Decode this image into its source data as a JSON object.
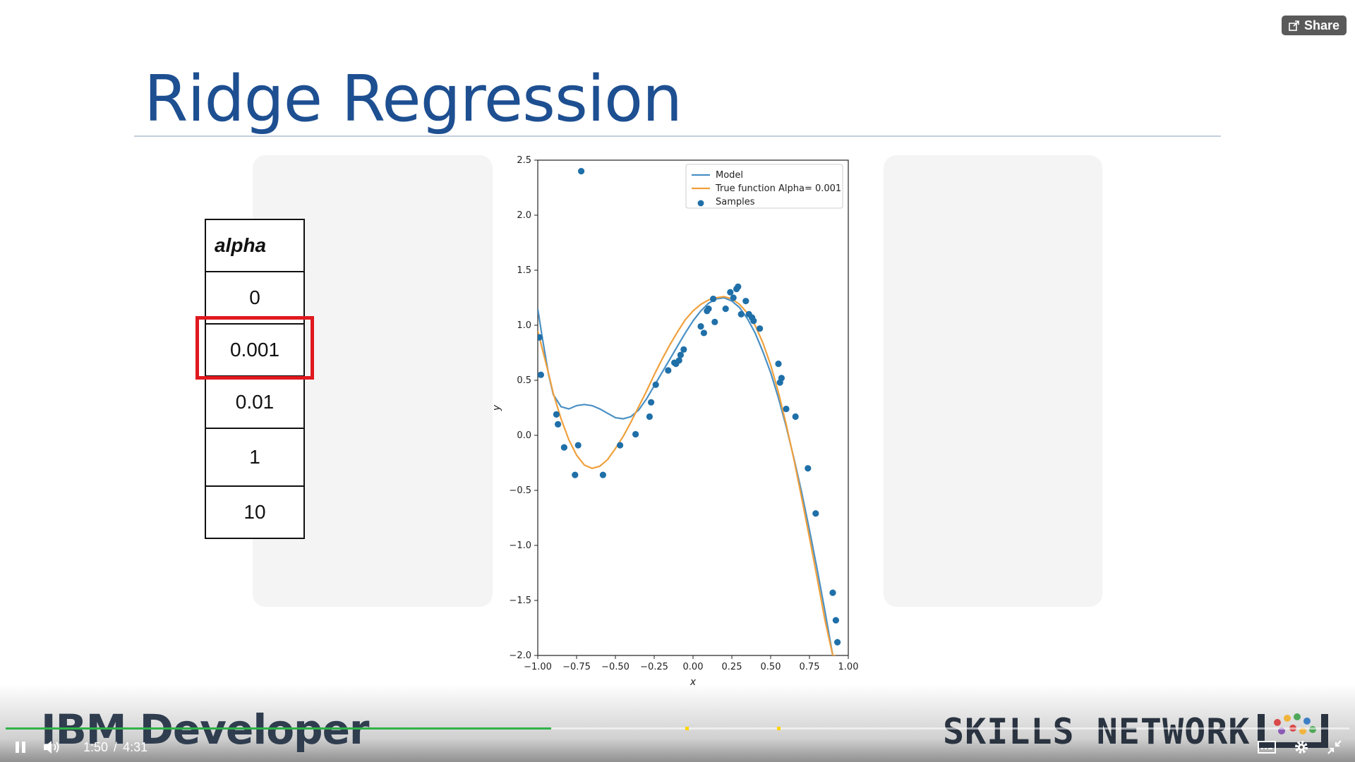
{
  "slide": {
    "title": "Ridge Regression",
    "alpha_table": {
      "header": "alpha",
      "values": [
        "0",
        "0.001",
        "0.01",
        "1",
        "10"
      ],
      "highlighted": "0.001"
    }
  },
  "chart_data": {
    "type": "line",
    "xlabel": "x",
    "ylabel": "y",
    "xlim": [
      -1.0,
      1.0
    ],
    "ylim": [
      -2.0,
      2.5
    ],
    "xticks": [
      "−1.00",
      "−0.75",
      "−0.50",
      "−0.25",
      "0.00",
      "0.25",
      "0.50",
      "0.75",
      "1.00"
    ],
    "yticks": [
      "2.5",
      "2.0",
      "1.5",
      "1.0",
      "0.5",
      "0.0",
      "−0.5",
      "−1.0",
      "−1.5",
      "−2.0"
    ],
    "legend_position": "top-right",
    "legend": [
      "Model",
      "True function Alpha= 0.001",
      "Samples"
    ],
    "series": [
      {
        "name": "Model",
        "color": "#4a90c4",
        "x": [
          -1.0,
          -0.97,
          -0.93,
          -0.9,
          -0.85,
          -0.8,
          -0.75,
          -0.7,
          -0.65,
          -0.6,
          -0.55,
          -0.5,
          -0.45,
          -0.4,
          -0.35,
          -0.3,
          -0.25,
          -0.2,
          -0.15,
          -0.1,
          -0.05,
          0.0,
          0.05,
          0.1,
          0.15,
          0.2,
          0.25,
          0.3,
          0.35,
          0.4,
          0.45,
          0.5,
          0.55,
          0.6,
          0.65,
          0.7,
          0.75,
          0.8,
          0.85,
          0.9
        ],
        "y": [
          1.15,
          0.88,
          0.55,
          0.37,
          0.26,
          0.24,
          0.27,
          0.28,
          0.27,
          0.24,
          0.2,
          0.16,
          0.15,
          0.17,
          0.23,
          0.33,
          0.45,
          0.57,
          0.69,
          0.81,
          0.93,
          1.04,
          1.13,
          1.2,
          1.24,
          1.25,
          1.22,
          1.16,
          1.06,
          0.93,
          0.76,
          0.57,
          0.34,
          0.08,
          -0.21,
          -0.52,
          -0.86,
          -1.22,
          -1.6,
          -2.0
        ]
      },
      {
        "name": "True function Alpha= 0.001",
        "color": "#f0a03c",
        "x": [
          -1.0,
          -0.97,
          -0.93,
          -0.9,
          -0.85,
          -0.8,
          -0.75,
          -0.7,
          -0.65,
          -0.6,
          -0.55,
          -0.5,
          -0.45,
          -0.4,
          -0.35,
          -0.3,
          -0.25,
          -0.2,
          -0.15,
          -0.1,
          -0.05,
          0.0,
          0.05,
          0.1,
          0.15,
          0.2,
          0.25,
          0.3,
          0.35,
          0.4,
          0.45,
          0.5,
          0.55,
          0.6,
          0.65,
          0.7,
          0.75,
          0.8,
          0.85,
          0.9,
          0.92
        ],
        "y": [
          0.95,
          0.78,
          0.56,
          0.38,
          0.15,
          -0.04,
          -0.18,
          -0.27,
          -0.3,
          -0.28,
          -0.22,
          -0.12,
          -0.01,
          0.12,
          0.26,
          0.4,
          0.55,
          0.69,
          0.82,
          0.94,
          1.05,
          1.13,
          1.19,
          1.23,
          1.25,
          1.26,
          1.24,
          1.19,
          1.11,
          1.0,
          0.84,
          0.64,
          0.39,
          0.1,
          -0.22,
          -0.57,
          -0.93,
          -1.3,
          -1.68,
          -2.0,
          -2.0
        ]
      }
    ],
    "samples": {
      "name": "Samples",
      "color": "#1f6fa8",
      "x": [
        -0.72,
        -0.99,
        -0.98,
        -0.88,
        -0.87,
        -0.83,
        -0.76,
        -0.74,
        -0.58,
        -0.47,
        -0.37,
        -0.28,
        -0.27,
        -0.24,
        -0.16,
        -0.12,
        -0.11,
        -0.09,
        -0.08,
        -0.06,
        0.05,
        0.07,
        0.09,
        0.1,
        0.14,
        0.13,
        0.21,
        0.24,
        0.26,
        0.28,
        0.29,
        0.31,
        0.34,
        0.36,
        0.38,
        0.39,
        0.43,
        0.55,
        0.56,
        0.57,
        0.6,
        0.66,
        0.74,
        0.79,
        0.9,
        0.92,
        0.93
      ],
      "y": [
        2.4,
        0.89,
        0.55,
        0.19,
        0.1,
        -0.11,
        -0.36,
        -0.09,
        -0.36,
        -0.09,
        0.01,
        0.17,
        0.3,
        0.46,
        0.59,
        0.66,
        0.65,
        0.68,
        0.73,
        0.78,
        0.99,
        0.93,
        1.13,
        1.15,
        1.03,
        1.24,
        1.15,
        1.3,
        1.25,
        1.33,
        1.35,
        1.1,
        1.22,
        1.1,
        1.07,
        1.04,
        0.97,
        0.65,
        0.48,
        0.52,
        0.24,
        0.17,
        -0.3,
        -0.71,
        -1.43,
        -1.68,
        -1.88
      ]
    }
  },
  "branding": {
    "left_logo": "IBM Developer",
    "right_logo": "SKILLS NETWORK"
  },
  "player": {
    "share_label": "Share",
    "current_time": "1:50",
    "separator": "/",
    "duration": "4:31",
    "progress_fraction": 0.406,
    "marker_fractions": [
      0.506,
      0.574
    ]
  }
}
